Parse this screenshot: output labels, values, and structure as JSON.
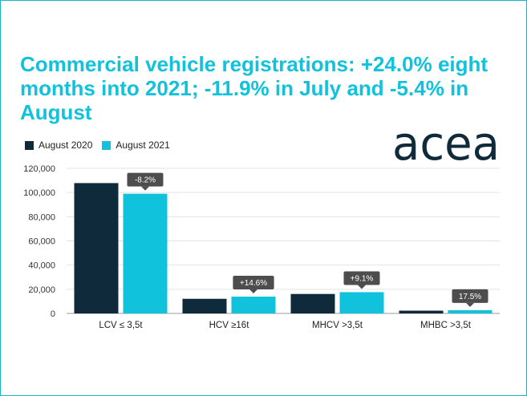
{
  "title": "Commercial vehicle registrations: +24.0% eight months into 2021; -11.9% in July and -5.4% in August",
  "logo_text": "acea",
  "colors": {
    "accent": "#11c2dd",
    "series_2020": "#0e2a3b",
    "series_2021": "#11c2dd",
    "callout": "#4d4d4d",
    "logo": "#0e2a3b"
  },
  "chart_data": {
    "type": "bar",
    "categories": [
      "LCV ≤ 3,5t",
      "HCV ≥16t",
      "MHCV >3,5t",
      "MHBC >3,5t"
    ],
    "series": [
      {
        "name": "August 2020",
        "values": [
          107800,
          12100,
          16100,
          2300
        ]
      },
      {
        "name": "August 2021",
        "values": [
          99000,
          13900,
          17600,
          2700
        ]
      }
    ],
    "changes": [
      "-8.2%",
      "+14.6%",
      "+9.1%",
      "17.5%"
    ],
    "ylim": [
      0,
      120000
    ],
    "yticks": [
      {
        "value": 0,
        "label": "0"
      },
      {
        "value": 20000,
        "label": "20,000"
      },
      {
        "value": 40000,
        "label": "40,000"
      },
      {
        "value": 60000,
        "label": "60,000"
      },
      {
        "value": 80000,
        "label": "80,000"
      },
      {
        "value": 100000,
        "label": "100,000"
      },
      {
        "value": 120000,
        "label": "120,000"
      }
    ],
    "grid": true,
    "legend": "top-left",
    "xlabel": "",
    "ylabel": ""
  }
}
